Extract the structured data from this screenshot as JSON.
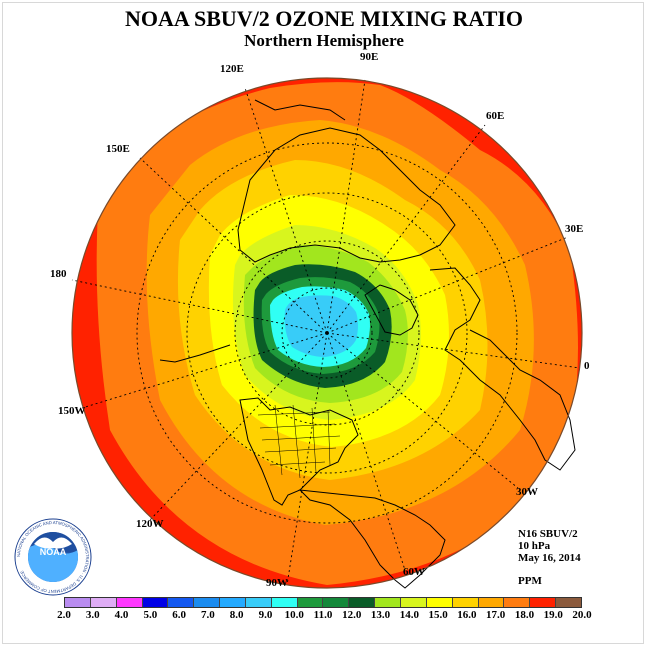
{
  "title": "NOAA SBUV/2 OZONE MIXING RATIO",
  "subtitle": "Northern Hemisphere",
  "longitude_labels": [
    "90E",
    "60E",
    "30E",
    "0",
    "30W",
    "60W",
    "90W",
    "120W",
    "150W",
    "180",
    "150E",
    "120E"
  ],
  "info": {
    "instrument": "N16 SBUV/2",
    "level": "10 hPa",
    "date": "May 16, 2014",
    "units": "PPM"
  },
  "logo": {
    "text": "NOAA",
    "ring_text": "NATIONAL OCEANIC AND ATMOSPHERIC ADMINISTRATION · U.S. DEPARTMENT OF COMMERCE"
  },
  "colorbar": {
    "labels": [
      "2.0",
      "3.0",
      "4.0",
      "5.0",
      "6.0",
      "7.0",
      "8.0",
      "9.0",
      "10.0",
      "11.0",
      "12.0",
      "13.0",
      "14.0",
      "15.0",
      "16.0",
      "17.0",
      "18.0",
      "19.0",
      "20.0"
    ],
    "colors": [
      "#b98cf0",
      "#dfadf5",
      "#ff38ff",
      "#0000e6",
      "#1458f0",
      "#1b8cf0",
      "#24aaff",
      "#38ccf8",
      "#30fff4",
      "#1e9a3c",
      "#14883a",
      "#0a5c28",
      "#a2e61e",
      "#d8f51e",
      "#ffff00",
      "#ffd200",
      "#ffa800",
      "#ff7c10",
      "#ff2200",
      "#8b5a3c"
    ]
  },
  "map": {
    "contour_bands_ppm": [
      9.0,
      10.0,
      11.0,
      12.0,
      13.0,
      14.0,
      15.0,
      16.0,
      17.0,
      18.0
    ]
  }
}
